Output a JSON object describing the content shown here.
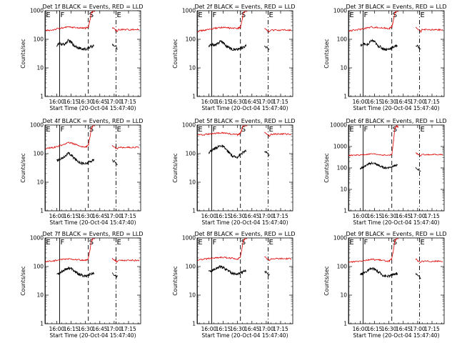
{
  "figure": {
    "ylabel": "Counts/sec",
    "xlabel": "Start Time (20-Oct-04 15:47:40)",
    "x_ticks": [
      "16:00",
      "16:15",
      "16:30",
      "16:45",
      "17:00",
      "17:15"
    ],
    "x_tick_minutes": [
      0,
      15,
      30,
      45,
      60,
      75
    ],
    "xlim_minutes": [
      -12.3,
      87.7
    ],
    "series_colors": {
      "events": "#000000",
      "lld": "#dd0000"
    },
    "marker_letters": [
      "E",
      "F",
      "S",
      "E"
    ]
  },
  "chart_data": [
    {
      "type": "line",
      "title": "Det 1f BLACK = Events, RED = LLD",
      "ylim": [
        1,
        1000
      ],
      "yticks": [
        "1",
        "10",
        "100",
        "1000"
      ],
      "markers": [
        {
          "label": "E",
          "minute": -12,
          "style": "solid"
        },
        {
          "label": "F",
          "minute": 3,
          "style": "solid"
        },
        {
          "label": "S",
          "minute": 33,
          "style": "dashed"
        },
        {
          "label": "E",
          "minute": 62,
          "style": "dashdot"
        }
      ],
      "gap_minutes": [
        40,
        58
      ],
      "series": [
        {
          "name": "Events",
          "x": [
            0,
            3,
            6,
            9,
            12,
            15,
            18,
            21,
            24,
            27,
            30,
            33,
            36,
            39
          ],
          "values": [
            60,
            72,
            65,
            70,
            90,
            80,
            60,
            55,
            48,
            45,
            45,
            50,
            55,
            60
          ]
        },
        {
          "name": "LLD",
          "x": [
            -12,
            -6,
            0,
            6,
            12,
            18,
            24,
            30,
            33,
            35,
            36,
            38,
            40
          ],
          "values": [
            200,
            210,
            230,
            250,
            270,
            260,
            250,
            245,
            270,
            500,
            800,
            1000,
            1000
          ]
        }
      ]
    },
    {
      "type": "line",
      "title": "Det 2f BLACK = Events, RED = LLD",
      "ylim": [
        1,
        1000
      ],
      "yticks": [
        "1",
        "10",
        "100",
        "1000"
      ],
      "markers": [
        {
          "label": "E",
          "minute": -12,
          "style": "solid"
        },
        {
          "label": "F",
          "minute": 3,
          "style": "solid"
        },
        {
          "label": "S",
          "minute": 33,
          "style": "dashed"
        },
        {
          "label": "E",
          "minute": 62,
          "style": "dashdot"
        }
      ],
      "gap_minutes": [
        40,
        58
      ],
      "series": [
        {
          "name": "Events",
          "x": [
            0,
            3,
            6,
            9,
            12,
            15,
            18,
            21,
            24,
            27,
            30,
            33,
            36,
            39
          ],
          "values": [
            55,
            68,
            62,
            68,
            88,
            78,
            58,
            52,
            46,
            44,
            44,
            48,
            54,
            58
          ]
        },
        {
          "name": "LLD",
          "x": [
            -12,
            -6,
            0,
            6,
            12,
            18,
            24,
            30,
            33,
            35,
            36,
            38,
            40
          ],
          "values": [
            190,
            205,
            220,
            240,
            260,
            255,
            245,
            240,
            265,
            500,
            800,
            1000,
            1000
          ]
        }
      ]
    },
    {
      "type": "line",
      "title": "Det 3f BLACK = Events, RED = LLD",
      "ylim": [
        1,
        1000
      ],
      "yticks": [
        "1",
        "10",
        "100",
        "1000"
      ],
      "markers": [
        {
          "label": "E",
          "minute": -12,
          "style": "solid"
        },
        {
          "label": "F",
          "minute": 3,
          "style": "solid"
        },
        {
          "label": "S",
          "minute": 33,
          "style": "dashed"
        },
        {
          "label": "E",
          "minute": 62,
          "style": "dashdot"
        }
      ],
      "gap_minutes": [
        40,
        58
      ],
      "series": [
        {
          "name": "Events",
          "x": [
            0,
            3,
            6,
            9,
            12,
            15,
            18,
            21,
            24,
            27,
            30,
            33,
            36,
            39
          ],
          "values": [
            58,
            70,
            64,
            69,
            92,
            82,
            60,
            54,
            47,
            44,
            45,
            50,
            56,
            60
          ]
        },
        {
          "name": "LLD",
          "x": [
            -12,
            -6,
            0,
            6,
            12,
            18,
            24,
            30,
            33,
            35,
            36,
            38,
            40
          ],
          "values": [
            195,
            208,
            225,
            248,
            268,
            258,
            248,
            242,
            268,
            500,
            800,
            1000,
            1000
          ]
        }
      ]
    },
    {
      "type": "line",
      "title": "Det 4f BLACK = Events, RED = LLD",
      "ylim": [
        1,
        1000
      ],
      "yticks": [
        "1",
        "10",
        "100",
        "1000"
      ],
      "markers": [
        {
          "label": "E",
          "minute": -12,
          "style": "solid"
        },
        {
          "label": "F",
          "minute": 3,
          "style": "solid"
        },
        {
          "label": "S",
          "minute": 33,
          "style": "dashed"
        },
        {
          "label": "E",
          "minute": 62,
          "style": "dashdot"
        }
      ],
      "gap_minutes": [
        40,
        58
      ],
      "series": [
        {
          "name": "Events",
          "x": [
            0,
            3,
            6,
            9,
            12,
            15,
            18,
            21,
            24,
            27,
            30,
            33,
            36,
            39
          ],
          "values": [
            55,
            65,
            70,
            85,
            100,
            90,
            70,
            58,
            50,
            45,
            44,
            48,
            55,
            60
          ]
        },
        {
          "name": "LLD",
          "x": [
            -12,
            -6,
            0,
            6,
            12,
            18,
            24,
            30,
            33,
            35,
            36,
            38,
            40
          ],
          "values": [
            150,
            160,
            175,
            200,
            250,
            220,
            185,
            170,
            200,
            420,
            750,
            1000,
            1000
          ]
        }
      ]
    },
    {
      "type": "line",
      "title": "Det 5f BLACK = Events, RED = LLD",
      "ylim": [
        1,
        1000
      ],
      "yticks": [
        "1",
        "10",
        "100",
        "1000"
      ],
      "markers": [
        {
          "label": "E",
          "minute": -12,
          "style": "solid"
        },
        {
          "label": "F",
          "minute": 3,
          "style": "solid"
        },
        {
          "label": "S",
          "minute": 33,
          "style": "dashed"
        },
        {
          "label": "E",
          "minute": 62,
          "style": "dashdot"
        }
      ],
      "gap_minutes": [
        40,
        58
      ],
      "series": [
        {
          "name": "Events",
          "x": [
            0,
            3,
            6,
            9,
            12,
            15,
            18,
            21,
            24,
            27,
            30,
            33,
            36,
            39
          ],
          "values": [
            110,
            130,
            150,
            170,
            190,
            175,
            140,
            110,
            85,
            75,
            78,
            95,
            110,
            125
          ]
        },
        {
          "name": "LLD",
          "x": [
            -12,
            -6,
            0,
            6,
            12,
            18,
            24,
            30,
            33,
            35,
            36,
            38,
            40
          ],
          "values": [
            440,
            460,
            480,
            500,
            540,
            520,
            480,
            460,
            520,
            800,
            1000,
            1000,
            1000
          ]
        }
      ]
    },
    {
      "type": "line",
      "title": "Det 6f BLACK = Events, RED = LLD",
      "ylim": [
        1,
        10000
      ],
      "yticks": [
        "1",
        "10",
        "100",
        "1000",
        "10000"
      ],
      "markers": [
        {
          "label": "E",
          "minute": -12,
          "style": "solid"
        },
        {
          "label": "F",
          "minute": 3,
          "style": "solid"
        },
        {
          "label": "S",
          "minute": 33,
          "style": "dashed"
        },
        {
          "label": "E",
          "minute": 62,
          "style": "dashdot"
        }
      ],
      "gap_minutes": [
        40,
        58
      ],
      "series": [
        {
          "name": "Events",
          "x": [
            0,
            3,
            6,
            9,
            12,
            15,
            18,
            21,
            24,
            27,
            30,
            33,
            36,
            39
          ],
          "values": [
            90,
            110,
            130,
            150,
            170,
            160,
            140,
            120,
            105,
            100,
            105,
            115,
            125,
            135
          ]
        },
        {
          "name": "LLD",
          "x": [
            -12,
            -6,
            0,
            6,
            12,
            18,
            24,
            30,
            33,
            35,
            36,
            38,
            40
          ],
          "values": [
            380,
            390,
            400,
            420,
            450,
            430,
            400,
            390,
            420,
            2000,
            7000,
            9000,
            8000
          ]
        }
      ]
    },
    {
      "type": "line",
      "title": "Det 7f BLACK = Events, RED = LLD",
      "ylim": [
        1,
        1000
      ],
      "yticks": [
        "1",
        "10",
        "100",
        "1000"
      ],
      "markers": [
        {
          "label": "E",
          "minute": -12,
          "style": "solid"
        },
        {
          "label": "F",
          "minute": 3,
          "style": "solid"
        },
        {
          "label": "S",
          "minute": 33,
          "style": "dashed"
        },
        {
          "label": "E",
          "minute": 62,
          "style": "dashdot"
        }
      ],
      "gap_minutes": [
        40,
        58
      ],
      "series": [
        {
          "name": "Events",
          "x": [
            0,
            3,
            6,
            9,
            12,
            15,
            18,
            21,
            24,
            27,
            30,
            33,
            36,
            39
          ],
          "values": [
            55,
            60,
            70,
            80,
            90,
            85,
            70,
            60,
            52,
            48,
            47,
            50,
            55,
            60
          ]
        },
        {
          "name": "LLD",
          "x": [
            -12,
            -6,
            0,
            6,
            12,
            18,
            24,
            30,
            33,
            35,
            36,
            38,
            40
          ],
          "values": [
            150,
            155,
            165,
            175,
            185,
            180,
            170,
            160,
            190,
            420,
            750,
            1000,
            1000
          ]
        }
      ]
    },
    {
      "type": "line",
      "title": "Det 8f BLACK = Events, RED = LLD",
      "ylim": [
        1,
        1000
      ],
      "yticks": [
        "1",
        "10",
        "100",
        "1000"
      ],
      "markers": [
        {
          "label": "E",
          "minute": -12,
          "style": "solid"
        },
        {
          "label": "F",
          "minute": 3,
          "style": "solid"
        },
        {
          "label": "S",
          "minute": 33,
          "style": "dashed"
        },
        {
          "label": "E",
          "minute": 62,
          "style": "dashdot"
        }
      ],
      "gap_minutes": [
        40,
        58
      ],
      "series": [
        {
          "name": "Events",
          "x": [
            0,
            3,
            6,
            9,
            12,
            15,
            18,
            21,
            24,
            27,
            30,
            33,
            36,
            39
          ],
          "values": [
            65,
            72,
            80,
            90,
            100,
            92,
            80,
            70,
            60,
            55,
            55,
            60,
            65,
            70
          ]
        },
        {
          "name": "LLD",
          "x": [
            -12,
            -6,
            0,
            6,
            12,
            18,
            24,
            30,
            33,
            35,
            36,
            38,
            40
          ],
          "values": [
            170,
            180,
            190,
            200,
            210,
            205,
            195,
            185,
            215,
            500,
            800,
            1000,
            1000
          ]
        }
      ]
    },
    {
      "type": "line",
      "title": "Det 9f BLACK = Events, RED = LLD",
      "ylim": [
        1,
        1000
      ],
      "yticks": [
        "1",
        "10",
        "100",
        "1000"
      ],
      "markers": [
        {
          "label": "E",
          "minute": -12,
          "style": "solid"
        },
        {
          "label": "F",
          "minute": 3,
          "style": "solid"
        },
        {
          "label": "S",
          "minute": 33,
          "style": "dashed"
        },
        {
          "label": "E",
          "minute": 62,
          "style": "dashdot"
        }
      ],
      "gap_minutes": [
        40,
        58
      ],
      "series": [
        {
          "name": "Events",
          "x": [
            0,
            3,
            6,
            9,
            12,
            15,
            18,
            21,
            24,
            27,
            30,
            33,
            36,
            39
          ],
          "values": [
            50,
            58,
            66,
            75,
            85,
            80,
            68,
            58,
            50,
            46,
            46,
            50,
            55,
            58
          ]
        },
        {
          "name": "LLD",
          "x": [
            -12,
            -6,
            0,
            6,
            12,
            18,
            24,
            30,
            33,
            35,
            36,
            38,
            40
          ],
          "values": [
            140,
            150,
            158,
            168,
            178,
            172,
            162,
            155,
            185,
            420,
            750,
            1000,
            1000
          ]
        }
      ]
    }
  ]
}
